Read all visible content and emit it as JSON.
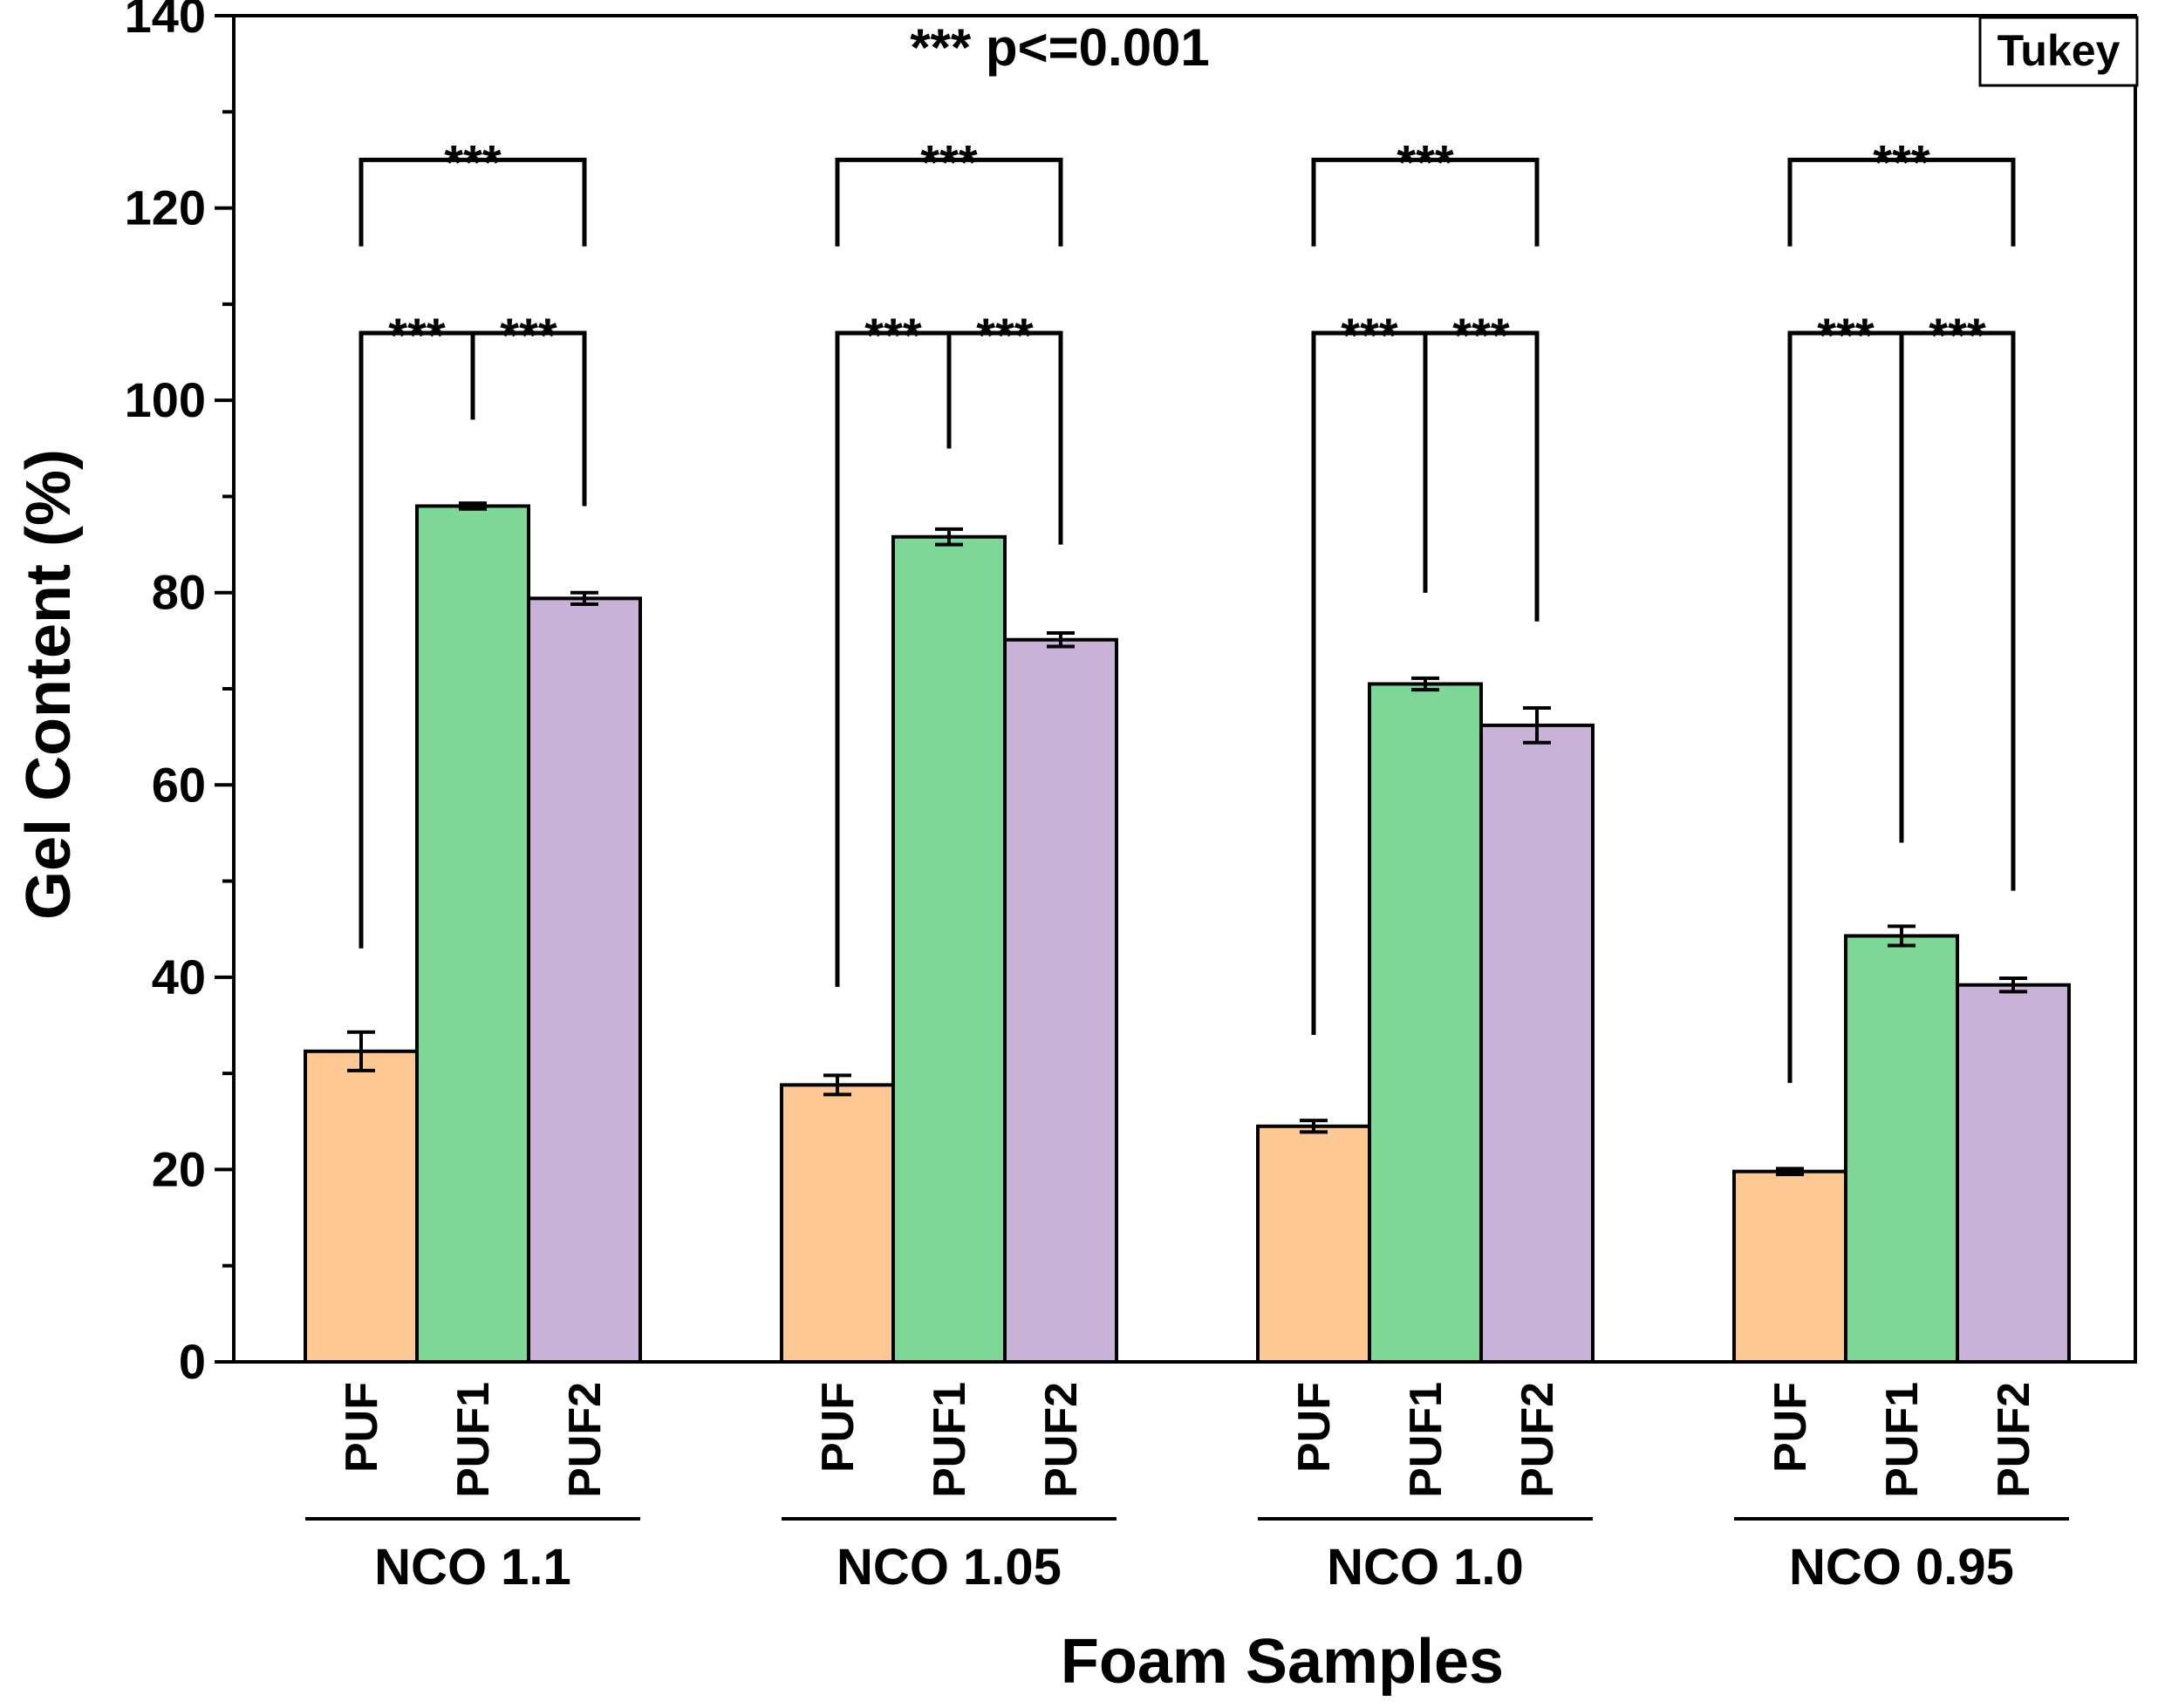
{
  "chart_data": {
    "type": "bar",
    "title": "",
    "xlabel": "Foam Samples",
    "ylabel": "Gel Content (%)",
    "ylim": [
      0,
      140
    ],
    "yticks": [
      0,
      20,
      40,
      60,
      80,
      100,
      120,
      140
    ],
    "grid": false,
    "annotation": "*** p<=0.001",
    "legend_box": "Tukey",
    "colors": {
      "PUF": "#FDC894",
      "PUF1": "#7DD897",
      "PUF2": "#C8B2D7"
    },
    "groups": [
      {
        "label": "NCO 1.1",
        "bars": [
          {
            "category": "PUF",
            "value": 32.3,
            "error": 2.0
          },
          {
            "category": "PUF1",
            "value": 89.0,
            "error": 0.3
          },
          {
            "category": "PUF2",
            "value": 79.4,
            "error": 0.6
          }
        ],
        "brackets": [
          {
            "from": 0,
            "to": 2,
            "height": 125,
            "left_end": 116,
            "right_end": 116,
            "label": "***"
          },
          {
            "from": 0,
            "to": 1,
            "height": 107,
            "left_end": 43,
            "right_end": 98,
            "label": "***"
          },
          {
            "from": 1,
            "to": 2,
            "height": 107,
            "left_end": 98,
            "right_end": 89,
            "label": "***"
          }
        ]
      },
      {
        "label": "NCO 1.05",
        "bars": [
          {
            "category": "PUF",
            "value": 28.8,
            "error": 1.0
          },
          {
            "category": "PUF1",
            "value": 85.8,
            "error": 0.8
          },
          {
            "category": "PUF2",
            "value": 75.1,
            "error": 0.7
          }
        ],
        "brackets": [
          {
            "from": 0,
            "to": 2,
            "height": 125,
            "left_end": 116,
            "right_end": 116,
            "label": "***"
          },
          {
            "from": 0,
            "to": 1,
            "height": 107,
            "left_end": 39,
            "right_end": 95,
            "label": "***"
          },
          {
            "from": 1,
            "to": 2,
            "height": 107,
            "left_end": 95,
            "right_end": 85,
            "label": "***"
          }
        ]
      },
      {
        "label": "NCO 1.0",
        "bars": [
          {
            "category": "PUF",
            "value": 24.5,
            "error": 0.6
          },
          {
            "category": "PUF1",
            "value": 70.5,
            "error": 0.6
          },
          {
            "category": "PUF2",
            "value": 66.2,
            "error": 1.8
          }
        ],
        "brackets": [
          {
            "from": 0,
            "to": 2,
            "height": 125,
            "left_end": 116,
            "right_end": 116,
            "label": "***"
          },
          {
            "from": 0,
            "to": 1,
            "height": 107,
            "left_end": 34,
            "right_end": 80,
            "label": "***"
          },
          {
            "from": 1,
            "to": 2,
            "height": 107,
            "left_end": 80,
            "right_end": 77,
            "label": "***"
          }
        ]
      },
      {
        "label": "NCO 0.95",
        "bars": [
          {
            "category": "PUF",
            "value": 19.8,
            "error": 0.3
          },
          {
            "category": "PUF1",
            "value": 44.3,
            "error": 1.0
          },
          {
            "category": "PUF2",
            "value": 39.2,
            "error": 0.7
          }
        ],
        "brackets": [
          {
            "from": 0,
            "to": 2,
            "height": 125,
            "left_end": 116,
            "right_end": 116,
            "label": "***"
          },
          {
            "from": 0,
            "to": 1,
            "height": 107,
            "left_end": 29,
            "right_end": 54,
            "label": "***"
          },
          {
            "from": 1,
            "to": 2,
            "height": 107,
            "left_end": 54,
            "right_end": 49,
            "label": "***"
          }
        ]
      }
    ]
  }
}
